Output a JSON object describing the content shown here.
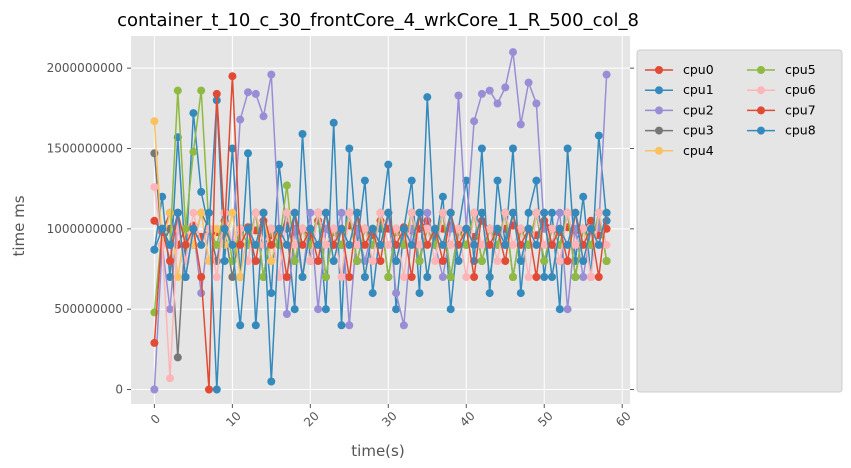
{
  "chart_data": {
    "type": "line",
    "title": "container_t_10_c_30_frontCore_4_wrkCore_1_R_500_col_8",
    "xlabel": "time(s)",
    "ylabel": "time ms",
    "xlim": [
      -3,
      61
    ],
    "ylim": [
      -90000000,
      2200000000
    ],
    "xticks": [
      0,
      10,
      20,
      30,
      40,
      50,
      60
    ],
    "xtick_labels": [
      "0",
      "10",
      "20",
      "30",
      "40",
      "50",
      "60"
    ],
    "yticks": [
      0,
      500000000,
      1000000000,
      1500000000,
      2000000000
    ],
    "ytick_labels": [
      "0",
      "500000000",
      "1000000000",
      "1500000000",
      "2000000000"
    ],
    "grid": true,
    "legend_position": "right-outside",
    "legend_columns": 2,
    "x": [
      0,
      1,
      2,
      3,
      4,
      5,
      6,
      7,
      8,
      9,
      10,
      11,
      12,
      13,
      14,
      15,
      16,
      17,
      18,
      19,
      20,
      21,
      22,
      23,
      24,
      25,
      26,
      27,
      28,
      29,
      30,
      31,
      32,
      33,
      34,
      35,
      36,
      37,
      38,
      39,
      40,
      41,
      42,
      43,
      44,
      45,
      46,
      47,
      48,
      49,
      50,
      51,
      52,
      53,
      54,
      55,
      56,
      57,
      58
    ],
    "series": [
      {
        "name": "cpu0",
        "color": "#E24A33",
        "values": [
          1050000000,
          980000000,
          1100000000,
          900000000,
          1000000000,
          1020000000,
          950000000,
          1000000000,
          980000000,
          1050000000,
          900000000,
          1000000000,
          1010000000,
          990000000,
          1050000000,
          960000000,
          1000000000,
          1020000000,
          980000000,
          1000000000,
          950000000,
          1050000000,
          1000000000,
          980000000,
          1000000000,
          1020000000,
          990000000,
          1000000000,
          960000000,
          1050000000,
          1000000000,
          980000000,
          1010000000,
          990000000,
          1000000000,
          1050000000,
          960000000,
          1000000000,
          1020000000,
          980000000,
          1000000000,
          950000000,
          1050000000,
          1000000000,
          980000000,
          1000000000,
          1020000000,
          990000000,
          1000000000,
          960000000,
          1050000000,
          1000000000,
          980000000,
          1010000000,
          990000000,
          1000000000,
          1050000000,
          960000000,
          1000000000
        ]
      },
      {
        "name": "cpu1",
        "color": "#348ABD",
        "values": [
          870000000,
          1200000000,
          700000000,
          1570000000,
          800000000,
          1720000000,
          1230000000,
          1000000000,
          1800000000,
          800000000,
          1500000000,
          700000000,
          1470000000,
          400000000,
          1100000000,
          600000000,
          1400000000,
          1000000000,
          500000000,
          1590000000,
          800000000,
          1100000000,
          500000000,
          1660000000,
          400000000,
          1500000000,
          900000000,
          1300000000,
          600000000,
          1000000000,
          1400000000,
          500000000,
          1000000000,
          1300000000,
          600000000,
          1820000000,
          900000000,
          1200000000,
          500000000,
          1000000000,
          1300000000,
          800000000,
          1500000000,
          600000000,
          1300000000,
          900000000,
          1500000000,
          600000000,
          1100000000,
          1300000000,
          700000000,
          1100000000,
          500000000,
          1500000000,
          800000000,
          1200000000,
          700000000,
          1580000000,
          1050000000
        ]
      },
      {
        "name": "cpu2",
        "color": "#988ED5",
        "values": [
          0,
          900000000,
          500000000,
          1100000000,
          700000000,
          1000000000,
          600000000,
          1000000000,
          800000000,
          1100000000,
          900000000,
          1680000000,
          1850000000,
          1840000000,
          1700000000,
          1960000000,
          1000000000,
          470000000,
          1000000000,
          700000000,
          1100000000,
          500000000,
          1000000000,
          900000000,
          1100000000,
          400000000,
          1000000000,
          800000000,
          1000000000,
          900000000,
          1100000000,
          600000000,
          400000000,
          1000000000,
          800000000,
          1100000000,
          900000000,
          700000000,
          1000000000,
          1830000000,
          1000000000,
          1670000000,
          1840000000,
          1860000000,
          1780000000,
          1880000000,
          2100000000,
          1650000000,
          1910000000,
          1780000000,
          1000000000,
          900000000,
          1100000000,
          500000000,
          1000000000,
          700000000,
          1000000000,
          1010000000,
          1960000000
        ]
      },
      {
        "name": "cpu3",
        "color": "#777777",
        "values": [
          1470000000,
          900000000,
          1000000000,
          200000000,
          1000000000,
          900000000,
          1100000000,
          1000000000,
          800000000,
          1000000000,
          700000000,
          1000000000,
          900000000,
          1100000000,
          700000000,
          1000000000,
          900000000,
          1100000000,
          800000000,
          1000000000,
          900000000,
          1100000000,
          700000000,
          1000000000,
          900000000,
          1100000000,
          800000000,
          1000000000,
          900000000,
          1100000000,
          700000000,
          1000000000,
          900000000,
          1100000000,
          800000000,
          1000000000,
          900000000,
          1100000000,
          700000000,
          1000000000,
          900000000,
          1100000000,
          800000000,
          1000000000,
          900000000,
          1100000000,
          700000000,
          1000000000,
          900000000,
          1100000000,
          800000000,
          1000000000,
          900000000,
          1100000000,
          700000000,
          1000000000,
          900000000,
          1100000000,
          800000000
        ]
      },
      {
        "name": "cpu4",
        "color": "#FBC15E",
        "values": [
          1670000000,
          900000000,
          1100000000,
          700000000,
          1000000000,
          900000000,
          1100000000,
          800000000,
          1000000000,
          900000000,
          1100000000,
          700000000,
          1000000000,
          900000000,
          1100000000,
          800000000,
          1000000000,
          900000000,
          1100000000,
          700000000,
          1000000000,
          900000000,
          1100000000,
          800000000,
          1000000000,
          900000000,
          1100000000,
          700000000,
          1000000000,
          900000000,
          1100000000,
          800000000,
          1000000000,
          900000000,
          1100000000,
          700000000,
          1000000000,
          900000000,
          1100000000,
          800000000,
          1000000000,
          900000000,
          1100000000,
          700000000,
          1000000000,
          900000000,
          1100000000,
          800000000,
          1000000000,
          900000000,
          1100000000,
          700000000,
          1000000000,
          900000000,
          1100000000,
          800000000,
          1000000000,
          900000000,
          1100000000
        ]
      },
      {
        "name": "cpu5",
        "color": "#8EBA42",
        "values": [
          480000000,
          1000000000,
          900000000,
          1860000000,
          1000000000,
          1480000000,
          1860000000,
          1000000000,
          900000000,
          1100000000,
          800000000,
          1000000000,
          900000000,
          1100000000,
          700000000,
          1000000000,
          900000000,
          1270000000,
          800000000,
          1000000000,
          900000000,
          1100000000,
          700000000,
          1000000000,
          900000000,
          1100000000,
          800000000,
          1000000000,
          900000000,
          1100000000,
          700000000,
          1000000000,
          900000000,
          1100000000,
          800000000,
          1000000000,
          900000000,
          1100000000,
          700000000,
          1000000000,
          900000000,
          1100000000,
          800000000,
          1000000000,
          900000000,
          1100000000,
          700000000,
          1000000000,
          900000000,
          1100000000,
          800000000,
          1000000000,
          900000000,
          1100000000,
          700000000,
          1000000000,
          900000000,
          1100000000,
          800000000
        ]
      },
      {
        "name": "cpu6",
        "color": "#FFB5B8",
        "values": [
          1260000000,
          900000000,
          70000000,
          1000000000,
          800000000,
          1100000000,
          900000000,
          1000000000,
          700000000,
          1100000000,
          900000000,
          1000000000,
          800000000,
          1100000000,
          900000000,
          1000000000,
          700000000,
          1100000000,
          900000000,
          1000000000,
          800000000,
          1100000000,
          900000000,
          1000000000,
          700000000,
          1100000000,
          900000000,
          1000000000,
          800000000,
          1100000000,
          900000000,
          1000000000,
          700000000,
          1100000000,
          900000000,
          1000000000,
          800000000,
          1100000000,
          900000000,
          1000000000,
          700000000,
          1100000000,
          900000000,
          1000000000,
          800000000,
          1100000000,
          900000000,
          1000000000,
          700000000,
          1100000000,
          900000000,
          1000000000,
          800000000,
          1100000000,
          900000000,
          1000000000,
          700000000,
          1100000000,
          900000000
        ]
      },
      {
        "name": "cpu7",
        "color": "#E24A33",
        "values": [
          290000000,
          1000000000,
          800000000,
          1100000000,
          900000000,
          1000000000,
          700000000,
          0,
          1840000000,
          1000000000,
          1950000000,
          900000000,
          1000000000,
          800000000,
          1100000000,
          900000000,
          1000000000,
          700000000,
          1100000000,
          900000000,
          1000000000,
          800000000,
          1100000000,
          900000000,
          1000000000,
          700000000,
          1100000000,
          900000000,
          1000000000,
          800000000,
          1100000000,
          900000000,
          1000000000,
          700000000,
          1100000000,
          900000000,
          1000000000,
          800000000,
          1100000000,
          900000000,
          1000000000,
          700000000,
          1100000000,
          900000000,
          1000000000,
          800000000,
          1100000000,
          900000000,
          1000000000,
          700000000,
          1100000000,
          900000000,
          1000000000,
          800000000,
          1100000000,
          900000000,
          1000000000,
          700000000,
          1100000000
        ]
      },
      {
        "name": "cpu8",
        "color": "#348ABD",
        "values": [
          870000000,
          1000000000,
          900000000,
          1100000000,
          700000000,
          1000000000,
          900000000,
          1100000000,
          0,
          1000000000,
          900000000,
          400000000,
          1000000000,
          900000000,
          1100000000,
          50000000,
          1000000000,
          900000000,
          1100000000,
          700000000,
          1000000000,
          900000000,
          1100000000,
          800000000,
          1000000000,
          900000000,
          1100000000,
          700000000,
          1000000000,
          900000000,
          1100000000,
          800000000,
          1000000000,
          900000000,
          1100000000,
          700000000,
          1000000000,
          900000000,
          1100000000,
          800000000,
          1000000000,
          900000000,
          1100000000,
          700000000,
          1000000000,
          900000000,
          1100000000,
          800000000,
          1000000000,
          900000000,
          1100000000,
          700000000,
          1000000000,
          900000000,
          1100000000,
          800000000,
          1000000000,
          900000000,
          1100000000
        ]
      }
    ]
  }
}
